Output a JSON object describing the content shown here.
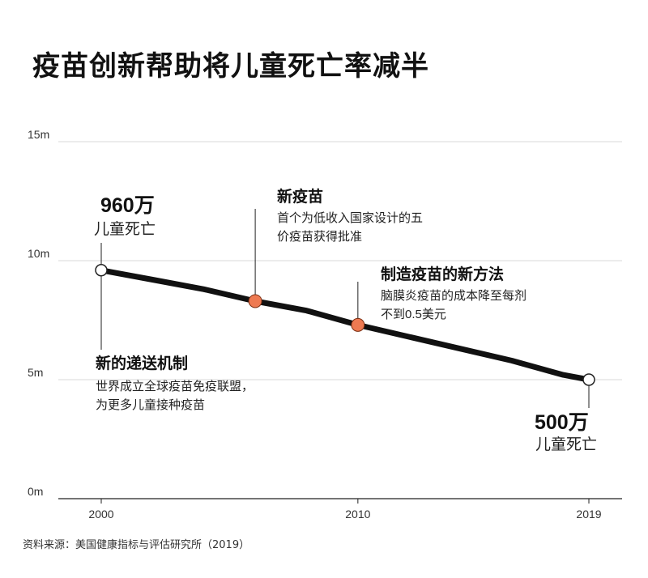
{
  "title": "疫苗创新帮助将儿童死亡率减半",
  "source": "资料来源：美国健康指标与评估研究所（2019）",
  "colors": {
    "line": "#111111",
    "marker": "#ee7a52",
    "grid": "#d9d9d9"
  },
  "chart_data": {
    "type": "line",
    "title": "疫苗创新帮助将儿童死亡率减半",
    "x_ticks": [
      "2000",
      "2010",
      "2019"
    ],
    "y_ticks": [
      "0m",
      "5m",
      "10m",
      "15m"
    ],
    "ylim": [
      0,
      15
    ],
    "xlim": [
      2000,
      2019
    ],
    "grid": true,
    "series": [
      {
        "x": [
          2000,
          2002,
          2004,
          2006,
          2008,
          2010,
          2012,
          2014,
          2016,
          2018,
          2019
        ],
        "values": [
          9.6,
          9.2,
          8.8,
          8.3,
          7.9,
          7.3,
          6.8,
          6.3,
          5.8,
          5.2,
          5.0
        ]
      }
    ],
    "markers": [
      {
        "x": 2000,
        "y": 9.6,
        "style": "open"
      },
      {
        "x": 2006,
        "y": 8.3,
        "style": "highlight"
      },
      {
        "x": 2010,
        "y": 7.3,
        "style": "highlight"
      },
      {
        "x": 2019,
        "y": 5.0,
        "style": "open"
      }
    ],
    "annotations": {
      "start_value": "960万",
      "start_label": "儿童死亡",
      "end_value": "500万",
      "end_label": "儿童死亡",
      "new_vaccine_title": "新疫苗",
      "new_vaccine_line1": "首个为低收入国家设计的五",
      "new_vaccine_line2": "价疫苗获得批准",
      "manufacturing_title": "制造疫苗的新方法",
      "manufacturing_line1": "脑膜炎疫苗的成本降至每剂",
      "manufacturing_line2": "不到0.5美元",
      "delivery_title": "新的递送机制",
      "delivery_line1": "世界成立全球疫苗免疫联盟，",
      "delivery_line2": "为更多儿童接种疫苗"
    }
  }
}
